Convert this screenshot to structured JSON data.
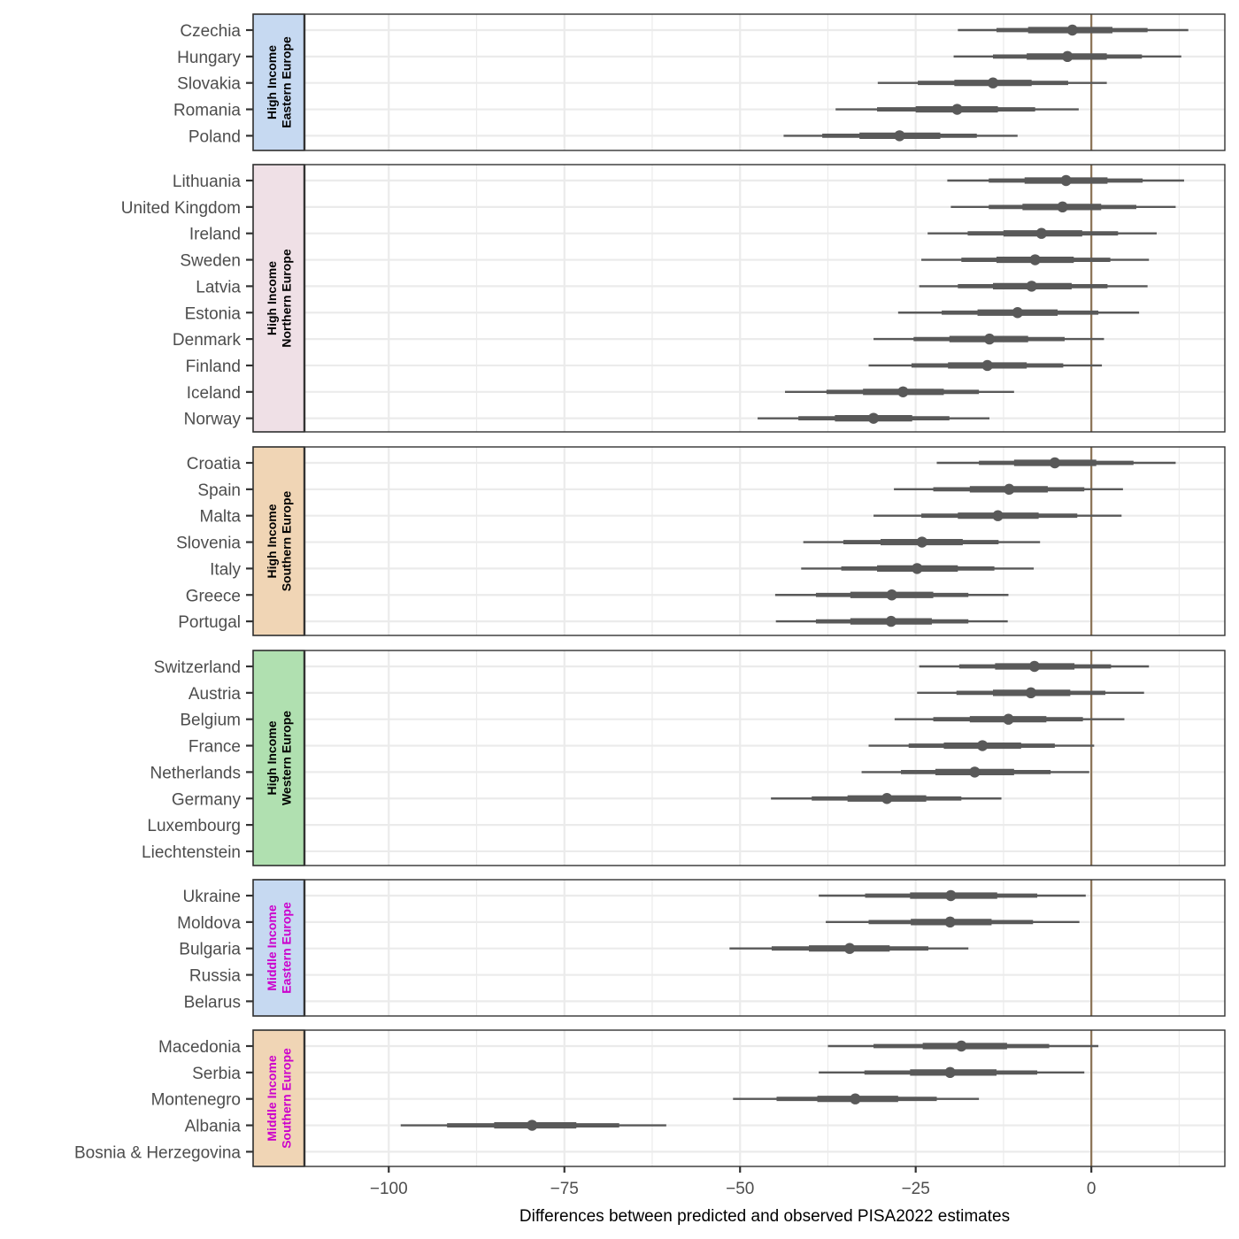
{
  "chart_data": {
    "type": "forest-interval",
    "xlabel": "Differences between predicted and observed PISA2022 estimates",
    "xlim": [
      -112,
      19
    ],
    "xticks": [
      -100,
      -75,
      -50,
      -25,
      0
    ],
    "xtick_labels": [
      "−100",
      "−75",
      "−50",
      "−25",
      "0"
    ],
    "reference_line": 0,
    "colors": {
      "interval": "#595959",
      "reference": "#8b7355",
      "strip_text_high": "#000000",
      "strip_text_middle": "#cc00cc",
      "grid": "#ebebeb"
    },
    "interval_levels": [
      "50%",
      "80%",
      "95%"
    ],
    "panels": [
      {
        "strip_line1": "High Income",
        "strip_line2": "Eastern Europe",
        "strip_fill": "#c6d9f1",
        "strip_text": "high",
        "rows": [
          {
            "country": "Czechia",
            "mean": -2.7,
            "ci50": [
              -9,
              3
            ],
            "ci80": [
              -13.5,
              8
            ],
            "ci95": [
              -19,
              13.8
            ]
          },
          {
            "country": "Hungary",
            "mean": -3.4,
            "ci50": [
              -9.2,
              2.2
            ],
            "ci80": [
              -14,
              7.2
            ],
            "ci95": [
              -19.6,
              12.8
            ]
          },
          {
            "country": "Slovakia",
            "mean": -14,
            "ci50": [
              -19.5,
              -8.5
            ],
            "ci80": [
              -24.7,
              -3.3
            ],
            "ci95": [
              -30.4,
              2.2
            ]
          },
          {
            "country": "Romania",
            "mean": -19.1,
            "ci50": [
              -25,
              -13.3
            ],
            "ci80": [
              -30.5,
              -8
            ],
            "ci95": [
              -36.4,
              -1.8
            ]
          },
          {
            "country": "Poland",
            "mean": -27.3,
            "ci50": [
              -33,
              -21.5
            ],
            "ci80": [
              -38.3,
              -16.3
            ],
            "ci95": [
              -43.8,
              -10.5
            ]
          }
        ]
      },
      {
        "strip_line1": "High Income",
        "strip_line2": "Northern Europe",
        "strip_fill": "#efe0e6",
        "strip_text": "high",
        "rows": [
          {
            "country": "Lithuania",
            "mean": -3.6,
            "ci50": [
              -9.5,
              2.3
            ],
            "ci80": [
              -14.6,
              7.3
            ],
            "ci95": [
              -20.5,
              13.2
            ]
          },
          {
            "country": "United Kingdom",
            "mean": -4.1,
            "ci50": [
              -9.8,
              1.4
            ],
            "ci80": [
              -14.6,
              6.4
            ],
            "ci95": [
              -20,
              12
            ]
          },
          {
            "country": "Ireland",
            "mean": -7.1,
            "ci50": [
              -12.5,
              -1.3
            ],
            "ci80": [
              -17.6,
              3.8
            ],
            "ci95": [
              -23.3,
              9.3
            ]
          },
          {
            "country": "Sweden",
            "mean": -8,
            "ci50": [
              -13.5,
              -2.5
            ],
            "ci80": [
              -18.5,
              2.7
            ],
            "ci95": [
              -24.2,
              8.2
            ]
          },
          {
            "country": "Latvia",
            "mean": -8.5,
            "ci50": [
              -14,
              -2.8
            ],
            "ci80": [
              -19,
              2.3
            ],
            "ci95": [
              -24.5,
              8
            ]
          },
          {
            "country": "Estonia",
            "mean": -10.5,
            "ci50": [
              -16.2,
              -4.8
            ],
            "ci80": [
              -21.3,
              1
            ],
            "ci95": [
              -27.5,
              6.8
            ]
          },
          {
            "country": "Denmark",
            "mean": -14.5,
            "ci50": [
              -20.2,
              -9
            ],
            "ci80": [
              -25.3,
              -3.8
            ],
            "ci95": [
              -31,
              1.8
            ]
          },
          {
            "country": "Finland",
            "mean": -14.8,
            "ci50": [
              -20.4,
              -9.2
            ],
            "ci80": [
              -25.6,
              -4
            ],
            "ci95": [
              -31.7,
              1.5
            ]
          },
          {
            "country": "Iceland",
            "mean": -26.8,
            "ci50": [
              -32.5,
              -21
            ],
            "ci80": [
              -37.7,
              -16
            ],
            "ci95": [
              -43.6,
              -11
            ]
          },
          {
            "country": "Norway",
            "mean": -31,
            "ci50": [
              -36.5,
              -25.5
            ],
            "ci80": [
              -41.7,
              -20.2
            ],
            "ci95": [
              -47.5,
              -14.5
            ]
          }
        ]
      },
      {
        "strip_line1": "High Income",
        "strip_line2": "Southern Europe",
        "strip_fill": "#f0d5b5",
        "strip_text": "high",
        "rows": [
          {
            "country": "Croatia",
            "mean": -5.2,
            "ci50": [
              -11,
              0.7
            ],
            "ci80": [
              -16,
              6
            ],
            "ci95": [
              -22,
              12
            ]
          },
          {
            "country": "Spain",
            "mean": -11.7,
            "ci50": [
              -17.3,
              -6.2
            ],
            "ci80": [
              -22.5,
              -1
            ],
            "ci95": [
              -28.1,
              4.5
            ]
          },
          {
            "country": "Malta",
            "mean": -13.3,
            "ci50": [
              -19,
              -7.5
            ],
            "ci80": [
              -24.2,
              -2
            ],
            "ci95": [
              -31,
              4.3
            ]
          },
          {
            "country": "Slovenia",
            "mean": -24.1,
            "ci50": [
              -30,
              -18.3
            ],
            "ci80": [
              -35.3,
              -13.2
            ],
            "ci95": [
              -41,
              -7.3
            ]
          },
          {
            "country": "Italy",
            "mean": -24.8,
            "ci50": [
              -30.5,
              -19
            ],
            "ci80": [
              -35.6,
              -13.8
            ],
            "ci95": [
              -41.3,
              -8.2
            ]
          },
          {
            "country": "Greece",
            "mean": -28.4,
            "ci50": [
              -34.3,
              -22.5
            ],
            "ci80": [
              -39.2,
              -17.5
            ],
            "ci95": [
              -45,
              -11.8
            ]
          },
          {
            "country": "Portugal",
            "mean": -28.5,
            "ci50": [
              -34.3,
              -22.7
            ],
            "ci80": [
              -39.2,
              -17.5
            ],
            "ci95": [
              -44.9,
              -11.9
            ]
          }
        ]
      },
      {
        "strip_line1": "High Income",
        "strip_line2": "Western Europe",
        "strip_fill": "#b0e0b0",
        "strip_text": "high",
        "rows": [
          {
            "country": "Switzerland",
            "mean": -8.1,
            "ci50": [
              -13.7,
              -2.4
            ],
            "ci80": [
              -18.8,
              2.8
            ],
            "ci95": [
              -24.5,
              8.2
            ]
          },
          {
            "country": "Austria",
            "mean": -8.6,
            "ci50": [
              -14,
              -3
            ],
            "ci80": [
              -19.2,
              2
            ],
            "ci95": [
              -24.8,
              7.5
            ]
          },
          {
            "country": "Belgium",
            "mean": -11.8,
            "ci50": [
              -17.3,
              -6.4
            ],
            "ci80": [
              -22.5,
              -1.2
            ],
            "ci95": [
              -28,
              4.7
            ]
          },
          {
            "country": "France",
            "mean": -15.5,
            "ci50": [
              -21,
              -10
            ],
            "ci80": [
              -26,
              -5.2
            ],
            "ci95": [
              -31.7,
              0.4
            ]
          },
          {
            "country": "Netherlands",
            "mean": -16.6,
            "ci50": [
              -22.2,
              -11
            ],
            "ci80": [
              -27.1,
              -5.8
            ],
            "ci95": [
              -32.7,
              -0.3
            ]
          },
          {
            "country": "Germany",
            "mean": -29.1,
            "ci50": [
              -34.7,
              -23.5
            ],
            "ci80": [
              -39.8,
              -18.5
            ],
            "ci95": [
              -45.6,
              -12.8
            ]
          },
          {
            "country": "Luxembourg",
            "mean": null,
            "ci50": null,
            "ci80": null,
            "ci95": null
          },
          {
            "country": "Liechtenstein",
            "mean": null,
            "ci50": null,
            "ci80": null,
            "ci95": null
          }
        ]
      },
      {
        "strip_line1": "Middle Income",
        "strip_line2": "Eastern Europe",
        "strip_fill": "#c6d9f1",
        "strip_text": "middle",
        "rows": [
          {
            "country": "Ukraine",
            "mean": -20,
            "ci50": [
              -25.8,
              -13.4
            ],
            "ci80": [
              -32.2,
              -7.7
            ],
            "ci95": [
              -38.8,
              -0.8
            ]
          },
          {
            "country": "Moldova",
            "mean": -20.1,
            "ci50": [
              -25.7,
              -14.2
            ],
            "ci80": [
              -31.7,
              -8.3
            ],
            "ci95": [
              -37.8,
              -1.7
            ]
          },
          {
            "country": "Bulgaria",
            "mean": -34.4,
            "ci50": [
              -40.2,
              -28.7
            ],
            "ci80": [
              -45.5,
              -23.2
            ],
            "ci95": [
              -51.5,
              -17.5
            ]
          },
          {
            "country": "Russia",
            "mean": null,
            "ci50": null,
            "ci80": null,
            "ci95": null
          },
          {
            "country": "Belarus",
            "mean": null,
            "ci50": null,
            "ci80": null,
            "ci95": null
          }
        ]
      },
      {
        "strip_line1": "Middle Income",
        "strip_line2": "Southern Europe",
        "strip_fill": "#f0d5b5",
        "strip_text": "middle",
        "rows": [
          {
            "country": "Macedonia",
            "mean": -18.5,
            "ci50": [
              -24,
              -12
            ],
            "ci80": [
              -31,
              -6
            ],
            "ci95": [
              -37.5,
              1
            ]
          },
          {
            "country": "Serbia",
            "mean": -20.1,
            "ci50": [
              -25.8,
              -13.5
            ],
            "ci80": [
              -32.3,
              -7.7
            ],
            "ci95": [
              -38.8,
              -1
            ]
          },
          {
            "country": "Montenegro",
            "mean": -33.6,
            "ci50": [
              -39,
              -27.5
            ],
            "ci80": [
              -44.8,
              -22
            ],
            "ci95": [
              -51,
              -16
            ]
          },
          {
            "country": "Albania",
            "mean": -79.6,
            "ci50": [
              -85,
              -73.3
            ],
            "ci80": [
              -91.7,
              -67.2
            ],
            "ci95": [
              -98.3,
              -60.5
            ]
          },
          {
            "country": "Bosnia & Herzegovina",
            "mean": null,
            "ci50": null,
            "ci80": null,
            "ci95": null
          }
        ]
      }
    ]
  }
}
